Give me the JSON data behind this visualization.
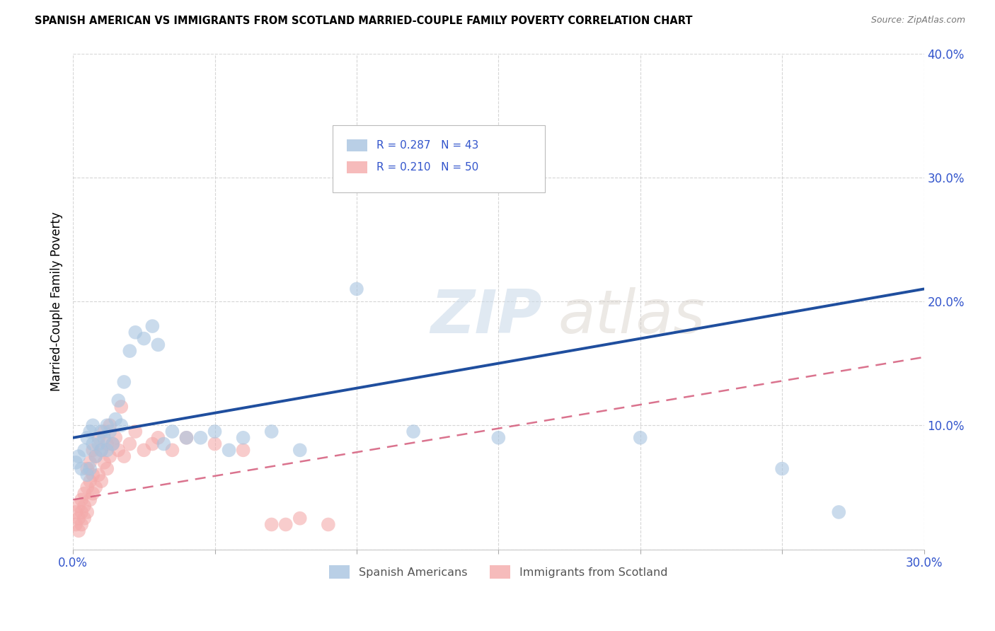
{
  "title": "SPANISH AMERICAN VS IMMIGRANTS FROM SCOTLAND MARRIED-COUPLE FAMILY POVERTY CORRELATION CHART",
  "source": "Source: ZipAtlas.com",
  "ylabel": "Married-Couple Family Poverty",
  "x_min": 0.0,
  "x_max": 0.3,
  "y_min": 0.0,
  "y_max": 0.4,
  "x_ticks": [
    0.0,
    0.05,
    0.1,
    0.15,
    0.2,
    0.25,
    0.3
  ],
  "y_ticks": [
    0.0,
    0.1,
    0.2,
    0.3,
    0.4
  ],
  "y_tick_labels": [
    "",
    "10.0%",
    "20.0%",
    "30.0%",
    "40.0%"
  ],
  "blue_R": 0.287,
  "blue_N": 43,
  "pink_R": 0.21,
  "pink_N": 50,
  "blue_color": "#a8c4e0",
  "pink_color": "#f4aaaa",
  "blue_line_color": "#1f4e9e",
  "pink_line_color": "#d45a7a",
  "watermark_zip": "ZIP",
  "watermark_atlas": "atlas",
  "legend_blue_label": "Spanish Americans",
  "legend_pink_label": "Immigrants from Scotland",
  "blue_line_x0": 0.0,
  "blue_line_y0": 0.09,
  "blue_line_x1": 0.3,
  "blue_line_y1": 0.21,
  "pink_line_x0": 0.0,
  "pink_line_y0": 0.04,
  "pink_line_x1": 0.3,
  "pink_line_y1": 0.155,
  "blue_scatter_x": [
    0.001,
    0.002,
    0.003,
    0.004,
    0.005,
    0.005,
    0.006,
    0.006,
    0.007,
    0.007,
    0.008,
    0.009,
    0.01,
    0.01,
    0.011,
    0.012,
    0.012,
    0.013,
    0.014,
    0.015,
    0.016,
    0.017,
    0.018,
    0.02,
    0.022,
    0.025,
    0.028,
    0.03,
    0.032,
    0.035,
    0.04,
    0.045,
    0.05,
    0.055,
    0.06,
    0.07,
    0.08,
    0.1,
    0.12,
    0.15,
    0.2,
    0.25,
    0.27
  ],
  "blue_scatter_y": [
    0.07,
    0.075,
    0.065,
    0.08,
    0.06,
    0.09,
    0.065,
    0.095,
    0.085,
    0.1,
    0.075,
    0.085,
    0.08,
    0.095,
    0.09,
    0.1,
    0.08,
    0.095,
    0.085,
    0.105,
    0.12,
    0.1,
    0.135,
    0.16,
    0.175,
    0.17,
    0.18,
    0.165,
    0.085,
    0.095,
    0.09,
    0.09,
    0.095,
    0.08,
    0.09,
    0.095,
    0.08,
    0.21,
    0.095,
    0.09,
    0.09,
    0.065,
    0.03
  ],
  "pink_scatter_x": [
    0.001,
    0.001,
    0.002,
    0.002,
    0.002,
    0.003,
    0.003,
    0.003,
    0.004,
    0.004,
    0.004,
    0.005,
    0.005,
    0.005,
    0.006,
    0.006,
    0.006,
    0.007,
    0.007,
    0.007,
    0.008,
    0.008,
    0.009,
    0.009,
    0.01,
    0.01,
    0.011,
    0.011,
    0.012,
    0.012,
    0.013,
    0.013,
    0.014,
    0.015,
    0.016,
    0.017,
    0.018,
    0.02,
    0.022,
    0.025,
    0.028,
    0.03,
    0.035,
    0.04,
    0.05,
    0.06,
    0.07,
    0.075,
    0.08,
    0.09
  ],
  "pink_scatter_y": [
    0.02,
    0.03,
    0.015,
    0.025,
    0.035,
    0.02,
    0.03,
    0.04,
    0.025,
    0.035,
    0.045,
    0.03,
    0.05,
    0.065,
    0.04,
    0.055,
    0.07,
    0.045,
    0.06,
    0.08,
    0.05,
    0.075,
    0.06,
    0.09,
    0.055,
    0.08,
    0.07,
    0.095,
    0.065,
    0.085,
    0.075,
    0.1,
    0.085,
    0.09,
    0.08,
    0.115,
    0.075,
    0.085,
    0.095,
    0.08,
    0.085,
    0.09,
    0.08,
    0.09,
    0.085,
    0.08,
    0.02,
    0.02,
    0.025,
    0.02
  ]
}
